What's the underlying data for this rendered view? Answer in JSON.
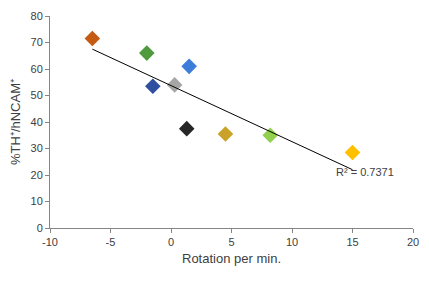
{
  "chart_data": {
    "type": "scatter",
    "x_label": "Rotation per min.",
    "y_label": "%TH⁺/hNCAM⁺",
    "series": [
      {
        "type": "scatter",
        "marker": "diamond",
        "x": [
          -6.5,
          -2,
          -1.5,
          1.5,
          0.3,
          1.3,
          4.5,
          8.2,
          15
        ],
        "values": [
          71.5,
          66,
          53.5,
          61,
          54,
          37.5,
          35.5,
          35,
          28.5
        ],
        "colors": [
          "#c55a11",
          "#4e9a3c",
          "#2f4f9f",
          "#3b7dd8",
          "#a6a6a6",
          "#262626",
          "#c9a227",
          "#92d050",
          "#ffc000"
        ]
      },
      {
        "type": "line",
        "line_style": "solid",
        "color": "#000000",
        "x": [
          -6.5,
          15
        ],
        "values": [
          67.5,
          22
        ]
      }
    ],
    "annotations": [
      {
        "text": "R² = 0.7371",
        "x": 16,
        "y": 21
      }
    ],
    "xlim": [
      -10,
      20
    ],
    "xticks": [
      -10,
      -5,
      0,
      5,
      10,
      15,
      20
    ],
    "ylim": [
      0,
      80
    ],
    "yticks": [
      0,
      10,
      20,
      30,
      40,
      50,
      60,
      70,
      80
    ],
    "grid": false
  }
}
